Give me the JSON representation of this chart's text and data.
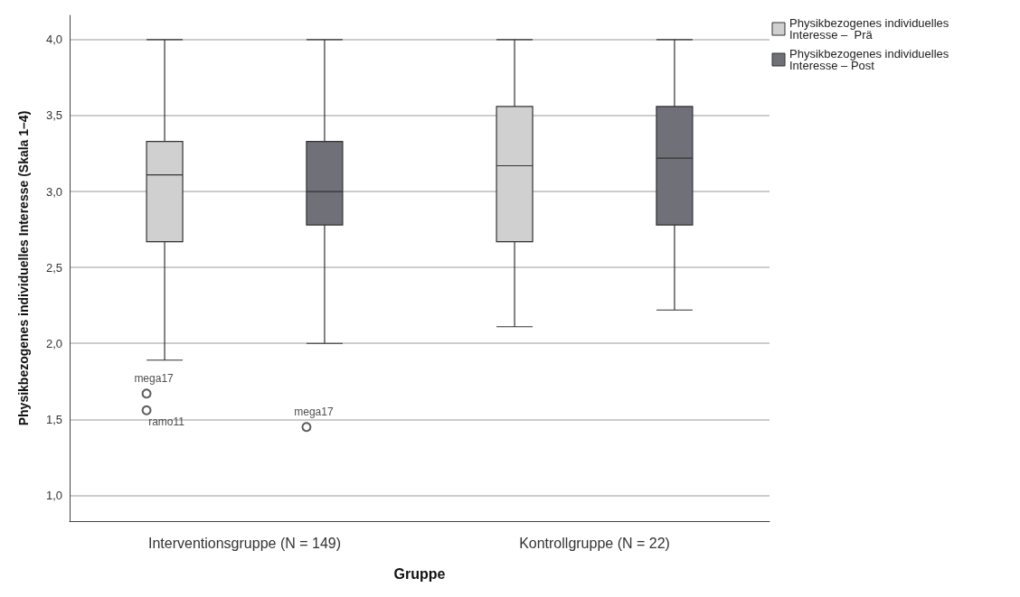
{
  "chart_data": {
    "type": "box",
    "xlabel": "Gruppe",
    "ylabel": "Physikbezogenes individuelles Interesse (Skala 1–4)",
    "categories": [
      "Interventionsgruppe (N = 149)",
      "Kontrollgruppe (N = 22)"
    ],
    "series": [
      {
        "name": "Physikbezogenes individuelles Interesse –  Prä",
        "color": "#d0d0d0",
        "boxes": [
          {
            "low": 1.89,
            "q1": 2.67,
            "median": 3.11,
            "q3": 3.33,
            "high": 4.0,
            "outliers": [
              1.67,
              1.56
            ]
          },
          {
            "low": 2.11,
            "q1": 2.67,
            "median": 3.17,
            "q3": 3.56,
            "high": 4.0
          }
        ]
      },
      {
        "name": "Physikbezogenes individuelles Interesse – Post",
        "color": "#6f7078",
        "boxes": [
          {
            "low": 2.0,
            "q1": 2.78,
            "median": 3.0,
            "q3": 3.33,
            "high": 4.0,
            "outliers": [
              1.45
            ]
          },
          {
            "low": 2.22,
            "q1": 2.78,
            "median": 3.22,
            "q3": 3.56,
            "high": 4.0
          }
        ]
      }
    ],
    "annotations": [
      "mega17",
      "ramo11",
      "mega17"
    ],
    "ylim": [
      0.83,
      4.16
    ],
    "yticks": [
      {
        "value": 1,
        "label": "1,0"
      },
      {
        "value": 1.5,
        "label": "1,5"
      },
      {
        "value": 2,
        "label": "2,0"
      },
      {
        "value": 2.5,
        "label": "2,5"
      },
      {
        "value": 3,
        "label": "3,0"
      },
      {
        "value": 3.5,
        "label": "3,5"
      },
      {
        "value": 4,
        "label": "4,0"
      }
    ],
    "grid": "y",
    "legend": "top right"
  }
}
